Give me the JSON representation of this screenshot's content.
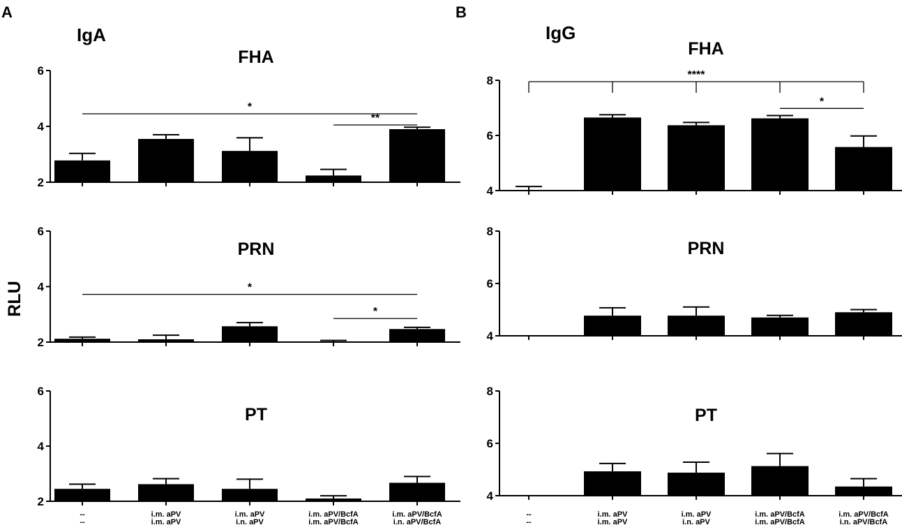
{
  "panels": [
    {
      "letter": "A",
      "isotype": "IgA"
    },
    {
      "letter": "B",
      "isotype": "IgG"
    }
  ],
  "ylabel": "RLU",
  "categories": [
    [
      "--",
      "--"
    ],
    [
      "i.m. aPV",
      "i.m. aPV"
    ],
    [
      "i.m. aPV",
      "i.n. aPV"
    ],
    [
      "i.m. aPV/BcfA",
      "i.m. aPV/BcfA"
    ],
    [
      "i.m. aPV/BcfA",
      "i.n. aPV/BcfA"
    ]
  ],
  "chart_data": [
    {
      "type": "bar",
      "panel": "A",
      "title": "FHA",
      "ylim": [
        2,
        6
      ],
      "yticks": [
        2,
        4,
        6
      ],
      "values": [
        2.78,
        3.55,
        3.12,
        2.24,
        3.9
      ],
      "errors": [
        0.25,
        0.15,
        0.47,
        0.22,
        0.07
      ],
      "significance": [
        {
          "from": 0,
          "to": 4,
          "label": "*",
          "y": 4.45,
          "style": "line"
        },
        {
          "from": 3,
          "to": 4,
          "label": "**",
          "y": 4.05,
          "style": "line"
        }
      ]
    },
    {
      "type": "bar",
      "panel": "A",
      "title": "PRN",
      "ylim": [
        2,
        6
      ],
      "yticks": [
        2,
        4,
        6
      ],
      "values": [
        2.12,
        2.1,
        2.57,
        2.02,
        2.47
      ],
      "errors": [
        0.06,
        0.15,
        0.13,
        0.04,
        0.06
      ],
      "significance": [
        {
          "from": 0,
          "to": 4,
          "label": "*",
          "y": 3.72,
          "style": "line"
        },
        {
          "from": 3,
          "to": 4,
          "label": "*",
          "y": 2.85,
          "style": "line"
        }
      ]
    },
    {
      "type": "bar",
      "panel": "A",
      "title": "PT",
      "ylim": [
        2,
        6
      ],
      "yticks": [
        2,
        4,
        6
      ],
      "values": [
        2.45,
        2.62,
        2.45,
        2.1,
        2.67
      ],
      "errors": [
        0.17,
        0.2,
        0.35,
        0.1,
        0.23
      ],
      "significance": []
    },
    {
      "type": "bar",
      "panel": "B",
      "title": "FHA",
      "ylim": [
        4,
        8
      ],
      "yticks": [
        4,
        6,
        8
      ],
      "values": [
        3.98,
        6.65,
        6.37,
        6.62,
        5.58
      ],
      "errors": [
        0.17,
        0.1,
        0.1,
        0.1,
        0.4
      ],
      "significance": [
        {
          "from": 0,
          "to": 4,
          "label": "****",
          "y": 7.95,
          "style": "bracket",
          "ticks": [
            0,
            1,
            2,
            3,
            4
          ]
        },
        {
          "from": 3,
          "to": 4,
          "label": "*",
          "y": 6.98,
          "style": "line"
        }
      ]
    },
    {
      "type": "bar",
      "panel": "B",
      "title": "PRN",
      "ylim": [
        4,
        8
      ],
      "yticks": [
        4,
        6,
        8
      ],
      "values": [
        null,
        4.77,
        4.77,
        4.7,
        4.9
      ],
      "errors": [
        0,
        0.3,
        0.33,
        0.08,
        0.1
      ],
      "significance": []
    },
    {
      "type": "bar",
      "panel": "B",
      "title": "PT",
      "ylim": [
        4,
        8
      ],
      "yticks": [
        4,
        6,
        8
      ],
      "values": [
        null,
        4.93,
        4.88,
        5.13,
        4.35
      ],
      "errors": [
        0,
        0.3,
        0.4,
        0.48,
        0.3
      ],
      "significance": []
    }
  ]
}
